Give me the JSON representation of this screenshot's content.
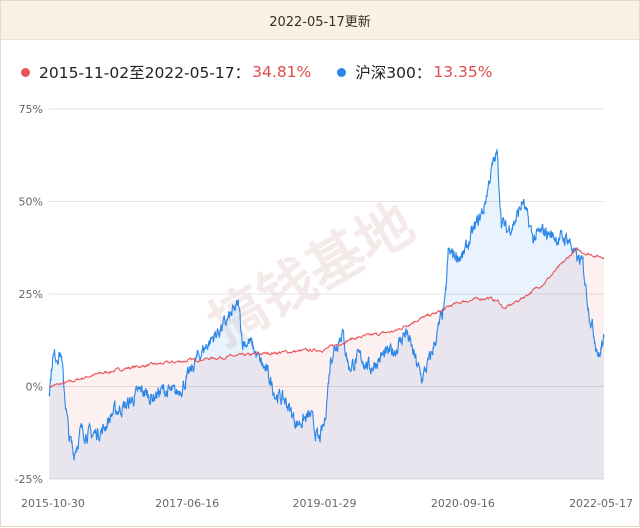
{
  "header": {
    "title": "2022-05-17更新"
  },
  "legend": {
    "items": [
      {
        "label": "2015-11-02至2022-05-17：",
        "value": "34.81%",
        "color": "#e8555b"
      },
      {
        "label": "沪深300：",
        "value": "13.35%",
        "color": "#2a86e8"
      }
    ]
  },
  "watermark": "搞钱基地",
  "chart_data": {
    "type": "area",
    "title": "",
    "xlabel": "",
    "ylabel": "",
    "y_unit": "%",
    "ylim": [
      -25,
      75
    ],
    "y_ticks": [
      "75%",
      "50%",
      "25%",
      "0%",
      "-25%"
    ],
    "y_tick_values": [
      75,
      50,
      25,
      0,
      -25
    ],
    "x_tick_labels": [
      "2015-10-30",
      "2017-06-16",
      "2019-01-29",
      "2020-09-16",
      "2022-05-17"
    ],
    "x_tick_dates": [
      "2015-10-30",
      "2017-06-16",
      "2019-01-29",
      "2020-09-16",
      "2022-05-17"
    ],
    "grid": true,
    "series": [
      {
        "name": "2015-11-02至2022-05-17",
        "color": "#e8555b",
        "points": [
          [
            "2015-10-30",
            0
          ],
          [
            "2016-01-15",
            1
          ],
          [
            "2016-05-01",
            3
          ],
          [
            "2016-10-01",
            5
          ],
          [
            "2017-02-01",
            6
          ],
          [
            "2017-06-16",
            7
          ],
          [
            "2017-12-01",
            8
          ],
          [
            "2018-06-01",
            9
          ],
          [
            "2019-01-29",
            10
          ],
          [
            "2019-06-01",
            13
          ],
          [
            "2019-12-01",
            15
          ],
          [
            "2020-03-01",
            18
          ],
          [
            "2020-06-01",
            20
          ],
          [
            "2020-08-01",
            22
          ],
          [
            "2020-09-16",
            23
          ],
          [
            "2021-01-01",
            24
          ],
          [
            "2021-02-15",
            23
          ],
          [
            "2021-03-15",
            21
          ],
          [
            "2021-06-01",
            24
          ],
          [
            "2021-09-01",
            28
          ],
          [
            "2021-12-01",
            34
          ],
          [
            "2022-01-15",
            37
          ],
          [
            "2022-03-01",
            36
          ],
          [
            "2022-05-17",
            34.81
          ]
        ]
      },
      {
        "name": "沪深300",
        "color": "#2a86e8",
        "points": [
          [
            "2015-10-30",
            -2
          ],
          [
            "2015-11-15",
            8
          ],
          [
            "2015-12-20",
            9
          ],
          [
            "2016-01-10",
            -5
          ],
          [
            "2016-01-25",
            -14
          ],
          [
            "2016-02-15",
            -18
          ],
          [
            "2016-03-15",
            -12
          ],
          [
            "2016-05-01",
            -13
          ],
          [
            "2016-06-15",
            -12
          ],
          [
            "2016-08-01",
            -7
          ],
          [
            "2016-10-01",
            -5
          ],
          [
            "2016-12-01",
            -1
          ],
          [
            "2017-01-15",
            -3
          ],
          [
            "2017-03-01",
            -1
          ],
          [
            "2017-05-01",
            -2
          ],
          [
            "2017-06-16",
            2
          ],
          [
            "2017-08-01",
            8
          ],
          [
            "2017-10-01",
            13
          ],
          [
            "2017-11-15",
            16
          ],
          [
            "2018-01-24",
            22
          ],
          [
            "2018-02-10",
            12
          ],
          [
            "2018-03-15",
            12
          ],
          [
            "2018-04-15",
            8
          ],
          [
            "2018-06-01",
            3
          ],
          [
            "2018-07-01",
            -2
          ],
          [
            "2018-08-15",
            -4
          ],
          [
            "2018-10-01",
            -10
          ],
          [
            "2018-12-01",
            -8
          ],
          [
            "2019-01-04",
            -15
          ],
          [
            "2019-01-29",
            -10
          ],
          [
            "2019-02-25",
            8
          ],
          [
            "2019-04-15",
            15
          ],
          [
            "2019-05-15",
            5
          ],
          [
            "2019-07-01",
            8
          ],
          [
            "2019-08-15",
            5
          ],
          [
            "2019-10-01",
            8
          ],
          [
            "2019-12-01",
            10
          ],
          [
            "2020-01-15",
            15
          ],
          [
            "2020-03-23",
            2
          ],
          [
            "2020-05-01",
            8
          ],
          [
            "2020-07-01",
            22
          ],
          [
            "2020-07-15",
            36
          ],
          [
            "2020-09-16",
            35
          ],
          [
            "2020-11-01",
            42
          ],
          [
            "2020-12-15",
            48
          ],
          [
            "2021-01-15",
            58
          ],
          [
            "2021-02-10",
            63
          ],
          [
            "2021-03-01",
            45
          ],
          [
            "2021-03-25",
            42
          ],
          [
            "2021-05-01",
            45
          ],
          [
            "2021-06-01",
            50
          ],
          [
            "2021-07-15",
            40
          ],
          [
            "2021-09-01",
            42
          ],
          [
            "2021-11-01",
            40
          ],
          [
            "2021-12-15",
            40
          ],
          [
            "2022-01-15",
            35
          ],
          [
            "2022-02-15",
            33
          ],
          [
            "2022-03-15",
            20
          ],
          [
            "2022-04-26",
            8
          ],
          [
            "2022-05-17",
            13.35
          ]
        ]
      }
    ]
  }
}
